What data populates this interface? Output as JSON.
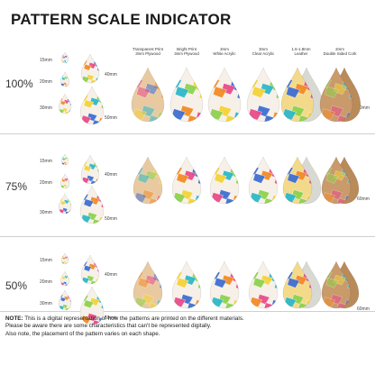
{
  "title": "PATTERN SCALE INDICATOR",
  "columns": [
    {
      "line1": "Transparent Print",
      "line2": "3mm Plywood"
    },
    {
      "line1": "Bright Print",
      "line2": "3mm Plywood"
    },
    {
      "line1": "3mm",
      "line2": "White Acrylic"
    },
    {
      "line1": "3mm",
      "line2": "Clear Acrylic"
    },
    {
      "line1": "1.6-1.8mm",
      "line2": "Leather"
    },
    {
      "line1": "2mm",
      "line2": "Double Sided Cork"
    }
  ],
  "rows": [
    {
      "scale": "100%",
      "sizes": [
        "15mm",
        "20mm",
        "30mm",
        "40mm",
        "50mm"
      ],
      "big_size": "60mm"
    },
    {
      "scale": "75%",
      "sizes": [
        "15mm",
        "20mm",
        "30mm",
        "40mm",
        "50mm"
      ],
      "big_size": "60mm"
    },
    {
      "scale": "50%",
      "sizes": [
        "15mm",
        "20mm",
        "30mm",
        "40mm",
        "50mm"
      ],
      "big_size": "60mm"
    }
  ],
  "note": {
    "label": "NOTE:",
    "line1": " This is a digital representation of how the patterns are printed on the different materials.",
    "line2": "Please be aware there are some characteristics that can't be represented digitally.",
    "line3": "Also note, the placement of the pattern varies on each shape."
  },
  "colors": {
    "plywood_light": "#e8c9a0",
    "leather": "#d9d9d4",
    "cork": "#b98a5a",
    "pattern": [
      "#e84c8b",
      "#2fb8c9",
      "#f28c28",
      "#f5d23a",
      "#3f6fd1",
      "#8fd14f"
    ]
  }
}
